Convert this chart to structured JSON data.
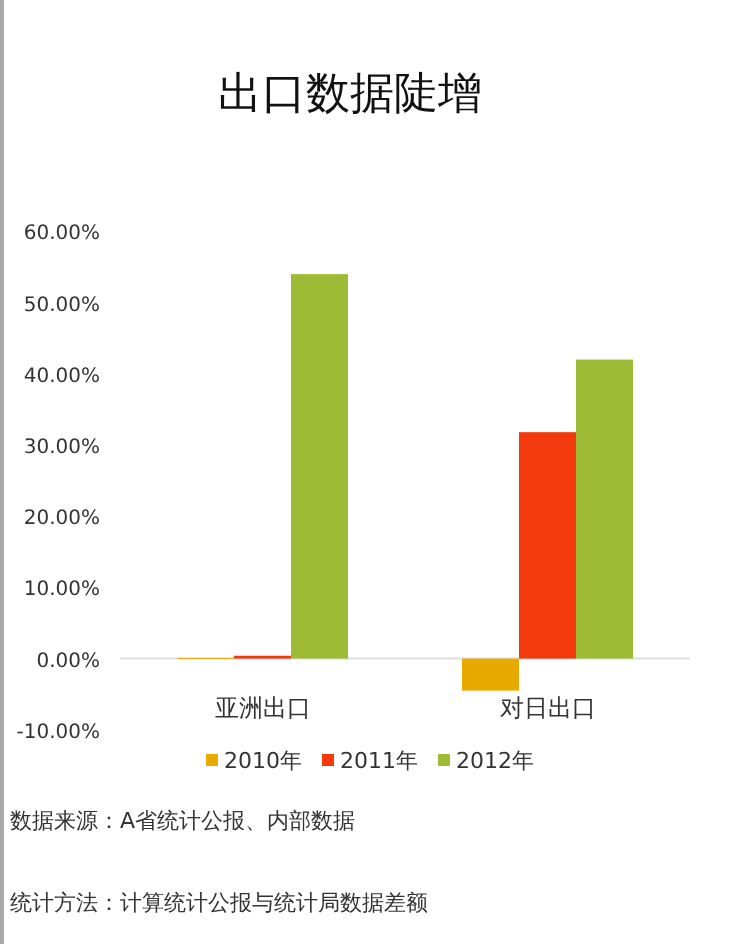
{
  "chart_data": {
    "type": "bar",
    "title": "出口数据陡增",
    "categories": [
      "亚洲出口",
      "对日出口"
    ],
    "series": [
      {
        "name": "2010年",
        "color": "#e8a900",
        "values": [
          0.1,
          -4.5
        ]
      },
      {
        "name": "2011年",
        "color": "#f23a0c",
        "values": [
          0.4,
          31.8
        ]
      },
      {
        "name": "2012年",
        "color": "#9ebb35",
        "values": [
          54.0,
          42.0
        ]
      }
    ],
    "ylim": [
      -10,
      60
    ],
    "yticks": [
      {
        "value": -10,
        "label": "-10.00%"
      },
      {
        "value": 0,
        "label": "0.00%"
      },
      {
        "value": 10,
        "label": "10.00%"
      },
      {
        "value": 20,
        "label": "20.00%"
      },
      {
        "value": 30,
        "label": "30.00%"
      },
      {
        "value": 40,
        "label": "40.00%"
      },
      {
        "value": 50,
        "label": "50.00%"
      },
      {
        "value": 60,
        "label": "60.00%"
      }
    ],
    "legend": "bottom",
    "grid": false,
    "annotations": [
      "数据来源：A省统计公报、内部数据",
      "统计方法：计算统计公报与统计局数据差额"
    ]
  }
}
